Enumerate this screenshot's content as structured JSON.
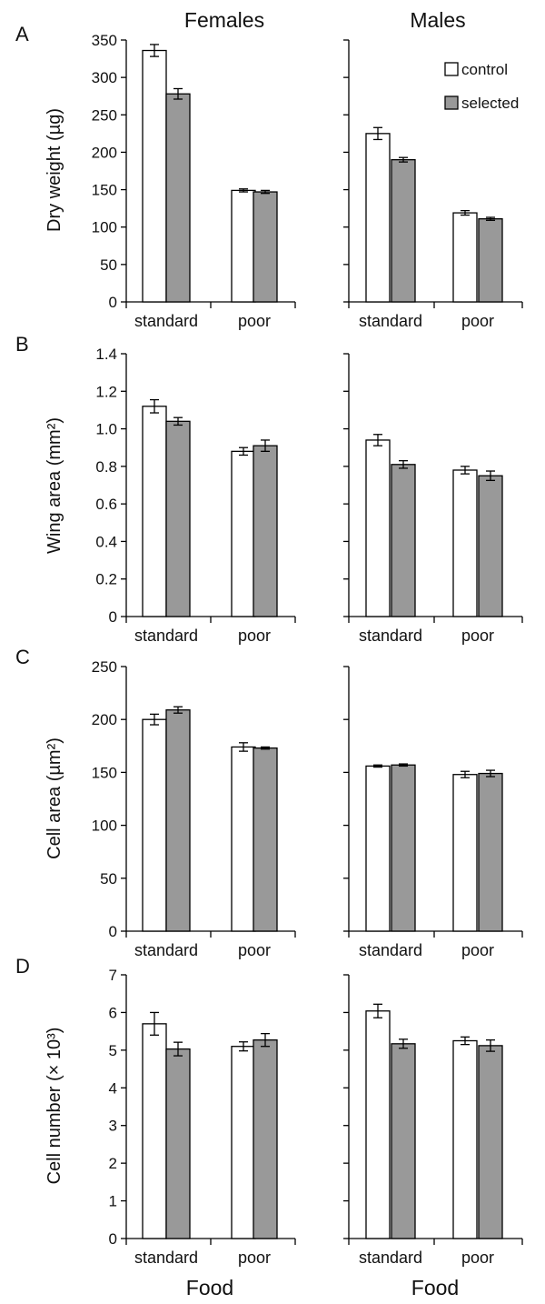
{
  "columns": [
    "Females",
    "Males"
  ],
  "xlabel": "Food",
  "legend": {
    "entries": [
      "control",
      "selected"
    ]
  },
  "colors": {
    "control": "#ffffff",
    "selected": "#999999",
    "outline": "#000000"
  },
  "chart_data": [
    {
      "type": "bar",
      "panel": "A",
      "column": "Females",
      "ylabel": "Dry weight (µg)",
      "ylim": [
        0,
        350
      ],
      "yticks": [
        "0",
        "50",
        "100",
        "150",
        "200",
        "250",
        "300",
        "350"
      ],
      "categories": [
        "standard",
        "poor"
      ],
      "series": [
        {
          "name": "control",
          "values": [
            336,
            149
          ],
          "errors": [
            8,
            2
          ]
        },
        {
          "name": "selected",
          "values": [
            278,
            147
          ],
          "errors": [
            7,
            2
          ]
        }
      ]
    },
    {
      "type": "bar",
      "panel": "A",
      "column": "Males",
      "ylabel": "Dry weight (µg)",
      "ylim": [
        0,
        350
      ],
      "categories": [
        "standard",
        "poor"
      ],
      "series": [
        {
          "name": "control",
          "values": [
            225,
            119
          ],
          "errors": [
            8,
            3
          ]
        },
        {
          "name": "selected",
          "values": [
            190,
            111
          ],
          "errors": [
            3,
            2
          ]
        }
      ]
    },
    {
      "type": "bar",
      "panel": "B",
      "column": "Females",
      "ylabel": "Wing area (mm²)",
      "ylim": [
        0,
        1.4
      ],
      "yticks": [
        "0",
        "0.2",
        "0.4",
        "0.6",
        "0.8",
        "1.0",
        "1.2",
        "1.4"
      ],
      "categories": [
        "standard",
        "poor"
      ],
      "series": [
        {
          "name": "control",
          "values": [
            1.12,
            0.88
          ],
          "errors": [
            0.035,
            0.02
          ]
        },
        {
          "name": "selected",
          "values": [
            1.04,
            0.91
          ],
          "errors": [
            0.02,
            0.03
          ]
        }
      ]
    },
    {
      "type": "bar",
      "panel": "B",
      "column": "Males",
      "ylabel": "Wing area (mm²)",
      "ylim": [
        0,
        1.4
      ],
      "categories": [
        "standard",
        "poor"
      ],
      "series": [
        {
          "name": "control",
          "values": [
            0.94,
            0.78
          ],
          "errors": [
            0.03,
            0.02
          ]
        },
        {
          "name": "selected",
          "values": [
            0.81,
            0.75
          ],
          "errors": [
            0.02,
            0.025
          ]
        }
      ]
    },
    {
      "type": "bar",
      "panel": "C",
      "column": "Females",
      "ylabel": "Cell area (µm²)",
      "ylim": [
        0,
        250
      ],
      "yticks": [
        "0",
        "50",
        "100",
        "150",
        "200",
        "250"
      ],
      "categories": [
        "standard",
        "poor"
      ],
      "series": [
        {
          "name": "control",
          "values": [
            200,
            174
          ],
          "errors": [
            5,
            4
          ]
        },
        {
          "name": "selected",
          "values": [
            209,
            173
          ],
          "errors": [
            3,
            1
          ]
        }
      ]
    },
    {
      "type": "bar",
      "panel": "C",
      "column": "Males",
      "ylabel": "Cell area (µm²)",
      "ylim": [
        0,
        250
      ],
      "categories": [
        "standard",
        "poor"
      ],
      "series": [
        {
          "name": "control",
          "values": [
            156,
            148
          ],
          "errors": [
            1,
            3
          ]
        },
        {
          "name": "selected",
          "values": [
            157,
            149
          ],
          "errors": [
            1,
            3
          ]
        }
      ]
    },
    {
      "type": "bar",
      "panel": "D",
      "column": "Females",
      "ylabel": "Cell number (× 10³)",
      "ylim": [
        0,
        7
      ],
      "yticks": [
        "0",
        "1",
        "2",
        "3",
        "4",
        "5",
        "6",
        "7"
      ],
      "categories": [
        "standard",
        "poor"
      ],
      "series": [
        {
          "name": "control",
          "values": [
            5.7,
            5.1
          ],
          "errors": [
            0.3,
            0.12
          ]
        },
        {
          "name": "selected",
          "values": [
            5.03,
            5.27
          ],
          "errors": [
            0.18,
            0.17
          ]
        }
      ]
    },
    {
      "type": "bar",
      "panel": "D",
      "column": "Males",
      "ylabel": "Cell number (× 10³)",
      "ylim": [
        0,
        7
      ],
      "categories": [
        "standard",
        "poor"
      ],
      "series": [
        {
          "name": "control",
          "values": [
            6.04,
            5.25
          ],
          "errors": [
            0.18,
            0.1
          ]
        },
        {
          "name": "selected",
          "values": [
            5.17,
            5.12
          ],
          "errors": [
            0.12,
            0.15
          ]
        }
      ]
    }
  ]
}
